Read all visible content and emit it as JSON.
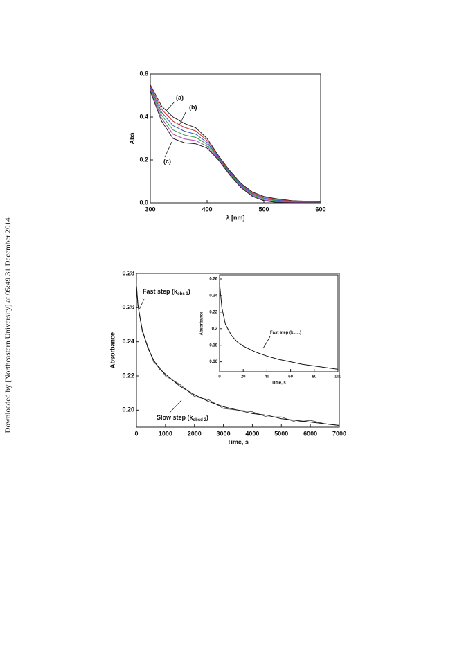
{
  "sidebar": "Downloaded by [Northeastern University] at 05:49 31 December 2014",
  "chart_data": [
    {
      "type": "line",
      "xlabel": "λ [nm]",
      "ylabel": "Abs",
      "x": [
        300,
        320,
        340,
        360,
        380,
        400,
        420,
        440,
        460,
        480,
        500,
        520,
        550,
        600
      ],
      "xlim": [
        300,
        600
      ],
      "xticks": [
        300,
        400,
        500,
        600
      ],
      "ylim": [
        0,
        0.6
      ],
      "yticks": [
        {
          "value": 0,
          "label": "0.0"
        },
        0.2,
        0.4,
        0.6
      ],
      "annotations": [
        {
          "text": "(a)"
        },
        {
          "text": "(b)"
        },
        {
          "text": "(c)"
        }
      ],
      "series": [
        {
          "color": "#222222",
          "values": [
            0.55,
            0.45,
            0.4,
            0.37,
            0.35,
            0.3,
            0.22,
            0.15,
            0.09,
            0.05,
            0.03,
            0.02,
            0.01,
            0.005
          ]
        },
        {
          "color": "#d03030",
          "values": [
            0.544,
            0.436,
            0.38,
            0.352,
            0.335,
            0.291,
            0.216,
            0.146,
            0.086,
            0.046,
            0.026,
            0.017,
            0.008,
            0.004
          ]
        },
        {
          "color": "#3050d0",
          "values": [
            0.538,
            0.422,
            0.36,
            0.334,
            0.32,
            0.282,
            0.212,
            0.142,
            0.082,
            0.042,
            0.022,
            0.013,
            0.006,
            0.003
          ]
        },
        {
          "color": "#30a040",
          "values": [
            0.532,
            0.408,
            0.34,
            0.316,
            0.305,
            0.273,
            0.208,
            0.138,
            0.078,
            0.038,
            0.018,
            0.01,
            0.004,
            0.002
          ]
        },
        {
          "color": "#b040b0",
          "values": [
            0.526,
            0.394,
            0.32,
            0.298,
            0.29,
            0.264,
            0.204,
            0.134,
            0.074,
            0.034,
            0.014,
            0.006,
            0.002,
            0.001
          ]
        },
        {
          "color": "#222222",
          "values": [
            0.52,
            0.38,
            0.3,
            0.28,
            0.275,
            0.255,
            0.2,
            0.13,
            0.07,
            0.03,
            0.01,
            0.003,
            0,
            0
          ]
        }
      ]
    },
    {
      "type": "line",
      "xlabel": "Time, s",
      "ylabel": "Absorbance",
      "x": [
        0,
        50,
        100,
        200,
        400,
        600,
        800,
        1000,
        1500,
        2000,
        2500,
        3000,
        3500,
        4000,
        4500,
        5000,
        5500,
        6000,
        6500,
        7000
      ],
      "xlim": [
        0,
        7000
      ],
      "xticks": [
        0,
        1000,
        2000,
        3000,
        4000,
        5000,
        6000,
        7000
      ],
      "ylim": [
        0.19,
        0.28
      ],
      "yticks": [
        {
          "value": 0.2,
          "label": "0.20"
        },
        0.22,
        0.24,
        0.26,
        0.28
      ],
      "annotations": [
        {
          "text": "Fast step (k",
          "sub": "obs 1",
          "end": ")"
        },
        {
          "text": "Slow step (k",
          "sub": "obsd 2",
          "end": ")"
        }
      ],
      "series": [
        {
          "color": "#555555",
          "values": [
            0.274,
            0.261,
            0.257,
            0.246,
            0.237,
            0.228,
            0.225,
            0.22,
            0.215,
            0.208,
            0.206,
            0.201,
            0.2,
            0.199,
            0.196,
            0.196,
            0.193,
            0.194,
            0.192,
            0.191
          ]
        },
        {
          "color": "#111111",
          "values": [
            0.272,
            0.262,
            0.256,
            0.247,
            0.236,
            0.229,
            0.224,
            0.221,
            0.214,
            0.209,
            0.205,
            0.202,
            0.2,
            0.198,
            0.197,
            0.195,
            0.194,
            0.193,
            0.192,
            0.191
          ]
        }
      ]
    },
    {
      "type": "line",
      "xlabel": "Time, s",
      "ylabel": "Absorbance",
      "x": [
        0,
        2,
        5,
        10,
        15,
        20,
        30,
        40,
        50,
        60,
        70,
        80,
        90,
        100
      ],
      "xlim": [
        0,
        100
      ],
      "xticks": [
        0,
        20,
        40,
        60,
        80,
        100
      ],
      "ylim": [
        0.148,
        0.265
      ],
      "yticks": [
        0.16,
        0.18,
        0.2,
        0.22,
        0.24,
        0.26
      ],
      "annotations": [
        {
          "text": "Fast step (k",
          "sub": "obsd 1",
          "end": ")"
        }
      ],
      "series": [
        {
          "color": "#111111",
          "values": [
            0.255,
            0.225,
            0.205,
            0.192,
            0.184,
            0.179,
            0.172,
            0.167,
            0.163,
            0.16,
            0.157,
            0.155,
            0.153,
            0.151
          ]
        }
      ]
    }
  ]
}
